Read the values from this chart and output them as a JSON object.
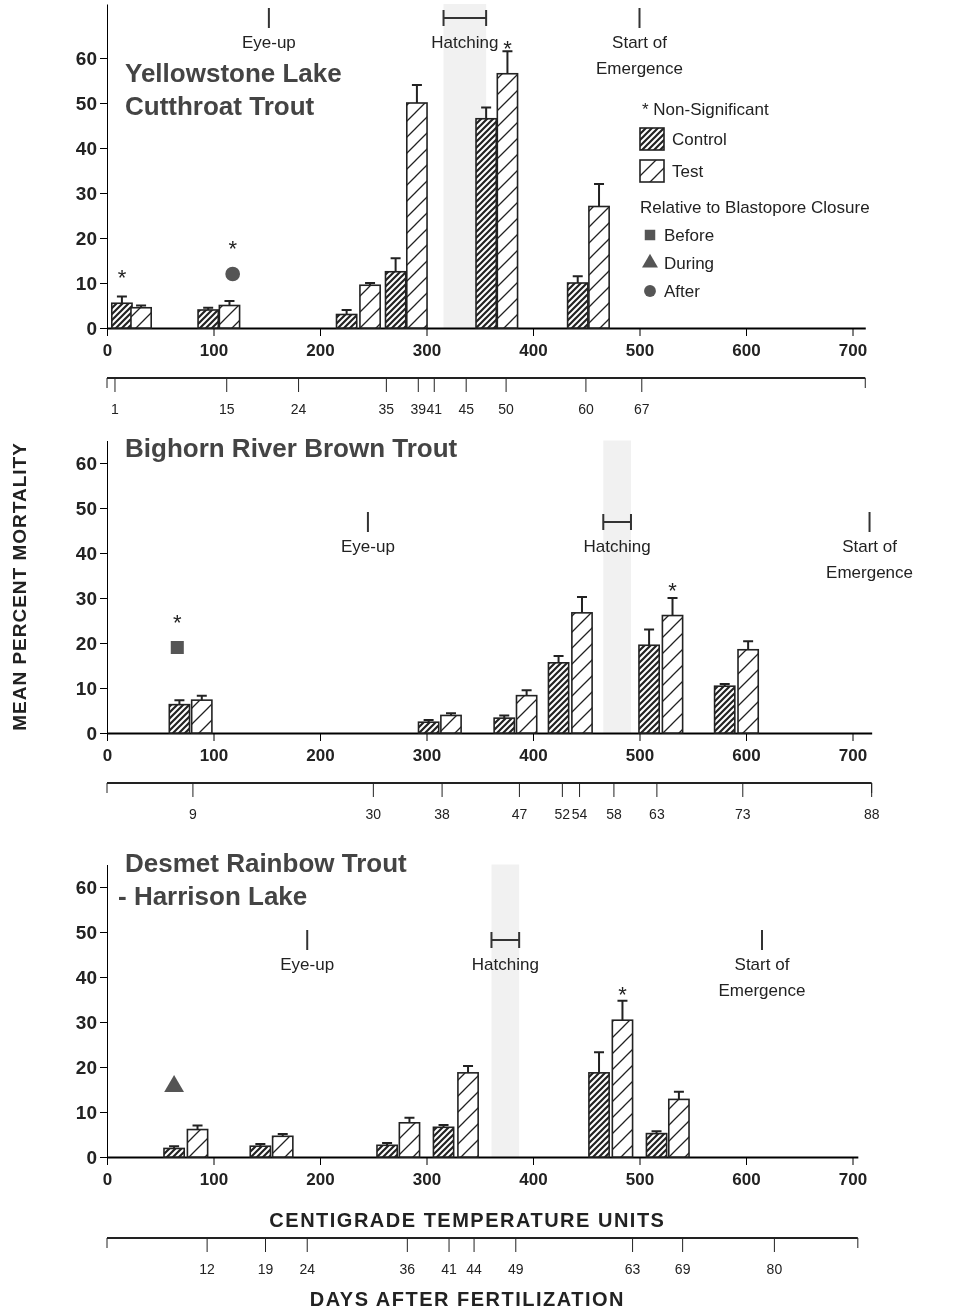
{
  "chart_data": [
    {
      "type": "bar",
      "title": "Yellowstone Lake\nCutthroat Trout",
      "xlim": [
        0,
        712
      ],
      "xticks": [
        0,
        100,
        200,
        300,
        400,
        500,
        600,
        700
      ],
      "ylim": [
        0,
        72
      ],
      "yticks": [
        0,
        10,
        20,
        30,
        40,
        50,
        60
      ],
      "x2lim": [
        0,
        95
      ],
      "x2ticks": [
        1,
        15,
        24,
        35,
        39,
        41,
        45,
        50,
        60,
        67
      ],
      "series": [
        {
          "name": "Control",
          "color": "#222222",
          "x": [
            14,
            95,
            225,
            271,
            356,
            442
          ],
          "values": [
            5.5,
            4,
            3,
            12.5,
            46.5,
            10
          ],
          "errors": [
            1.5,
            0.5,
            1,
            3,
            2.5,
            1.5
          ]
        },
        {
          "name": "Test",
          "color": "#222222",
          "x": [
            32,
            115,
            247,
            291,
            376,
            462
          ],
          "values": [
            4.5,
            5,
            9.5,
            50,
            56.5,
            27
          ],
          "errors": [
            0.5,
            1,
            0.5,
            4,
            5,
            5
          ]
        },
        {
          "type": "scatter",
          "name": "Before",
          "color": "#555555",
          "marker": "square"
        },
        {
          "type": "scatter",
          "name": "During",
          "color": "#555555",
          "marker": "triangle"
        },
        {
          "type": "scatter",
          "name": "After",
          "color": "#555555",
          "marker": "circle",
          "x": [
            118
          ],
          "values": [
            12
          ]
        }
      ],
      "ref_lines": [
        {
          "axis": "x",
          "value": 152,
          "label": "Eye-up"
        },
        {
          "axis": "x",
          "value": 500,
          "label": "Start of\nEmergence"
        }
      ],
      "bands": [
        {
          "axis": "x",
          "from": 316,
          "to": 356,
          "label": "Hatching",
          "color": "#333333"
        }
      ],
      "annotations": [
        "* Non-Significant",
        {
          "text": "*",
          "x": 14,
          "y": 5.5
        },
        {
          "text": "*",
          "x": 118,
          "y": 12
        },
        {
          "text": "*",
          "x": 376,
          "y": 56.5
        }
      ],
      "legend": "right",
      "legend_title": "Relative to Blastopore Closure"
    },
    {
      "type": "bar",
      "title": "Bighorn River Brown Trout",
      "ylabel": "MEAN PERCENT MORTALITY",
      "xlim": [
        0,
        718
      ],
      "xticks": [
        0,
        100,
        200,
        300,
        400,
        500,
        600,
        700
      ],
      "ylim": [
        0,
        65
      ],
      "yticks": [
        0,
        10,
        20,
        30,
        40,
        50,
        60
      ],
      "x2lim": [
        -1,
        88
      ],
      "x2ticks": [
        9,
        30,
        38,
        47,
        52,
        54,
        58,
        63,
        73,
        88
      ],
      "series": [
        {
          "color": "#222222",
          "x": [
            68,
            302,
            373,
            424,
            509,
            580
          ],
          "values": [
            6.3,
            2.4,
            3.3,
            15.6,
            19.5,
            10.4
          ],
          "errors": [
            1,
            0.5,
            0.6,
            1.5,
            3.5,
            0.5
          ]
        },
        {
          "color": "#222222",
          "x": [
            89,
            323,
            394,
            446,
            531,
            602
          ],
          "values": [
            7.3,
            3.9,
            8.3,
            26.7,
            26.1,
            18.5
          ],
          "errors": [
            1,
            0.5,
            1.2,
            3.5,
            3.9,
            1.9
          ]
        },
        {
          "type": "scatter",
          "color": "#555555",
          "marker": "square",
          "x": [
            66
          ],
          "values": [
            19
          ]
        }
      ],
      "ref_lines": [
        {
          "axis": "x",
          "value": 245,
          "label": "Eye-up"
        },
        {
          "axis": "x",
          "value": 716,
          "label": "Start of\nEmergence"
        }
      ],
      "bands": [
        {
          "axis": "x",
          "from": 466,
          "to": 492,
          "label": "Hatching",
          "color": "#333333"
        }
      ],
      "annotations": [
        {
          "text": "*",
          "x": 66,
          "y": 19
        },
        {
          "text": "*",
          "x": 531,
          "y": 26.1
        }
      ]
    },
    {
      "type": "bar",
      "title": "Desmet Rainbow Trout\n- Harrison Lake",
      "xlabel": "CENTIGRADE TEMPERATURE UNITS",
      "x2label": "DAYS AFTER FERTILIZATION",
      "xlim": [
        0,
        705
      ],
      "xticks": [
        0,
        100,
        200,
        300,
        400,
        500,
        600,
        700
      ],
      "ylim": [
        0,
        65
      ],
      "yticks": [
        0,
        10,
        20,
        30,
        40,
        50,
        60
      ],
      "x2lim": [
        0,
        90
      ],
      "x2ticks": [
        12,
        19,
        24,
        36,
        41,
        44,
        49,
        63,
        69,
        80
      ],
      "series": [
        {
          "color": "#222222",
          "x": [
            63,
            144,
            263,
            316,
            462,
            516
          ],
          "values": [
            1.9,
            2.4,
            2.6,
            6.6,
            18.7,
            5.2
          ],
          "errors": [
            0.5,
            0.5,
            0.5,
            0.5,
            4.6,
            0.5
          ]
        },
        {
          "color": "#222222",
          "x": [
            85,
            165,
            284,
            339,
            484,
            537
          ],
          "values": [
            6.1,
            4.6,
            7.6,
            18.7,
            30.4,
            12.8
          ],
          "errors": [
            0.9,
            0.5,
            1.1,
            1.5,
            4.3,
            1.7
          ]
        },
        {
          "type": "scatter",
          "color": "#555555",
          "marker": "triangle",
          "x": [
            63
          ],
          "values": [
            15.7
          ]
        }
      ],
      "ref_lines": [
        {
          "axis": "x",
          "value": 188,
          "label": "Eye-up"
        },
        {
          "axis": "x",
          "value": 615,
          "label": "Start of\nEmergence"
        }
      ],
      "bands": [
        {
          "axis": "x",
          "from": 361,
          "to": 387,
          "label": "Hatching",
          "color": "#333333"
        }
      ],
      "annotations": [
        {
          "text": "*",
          "x": 484,
          "y": 30.4
        }
      ]
    }
  ]
}
